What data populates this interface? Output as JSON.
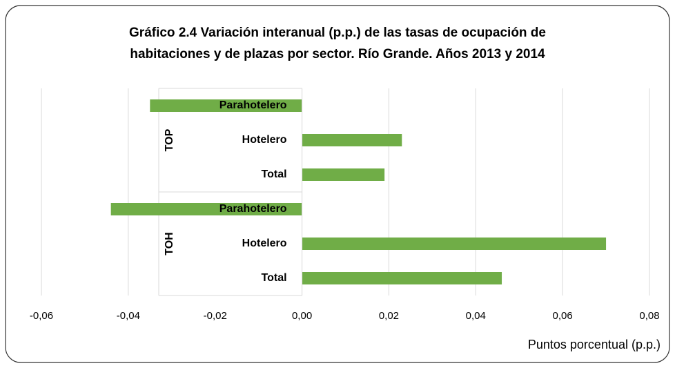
{
  "chart_data": {
    "type": "bar",
    "orientation": "horizontal",
    "title": [
      "Gráfico 2.4 Variación interanual (p.p.) de las tasas de ocupación de",
      "habitaciones y de plazas  por sector. Río Grande. Años 2013 y 2014"
    ],
    "x_label": "Puntos porcentual (p.p.)",
    "color": "#70ad47",
    "groups": [
      {
        "name": "TOP",
        "categories": [
          "Parahotelero",
          "Hotelero",
          "Total"
        ],
        "values": [
          -0.035,
          0.023,
          0.019
        ]
      },
      {
        "name": "TOH",
        "categories": [
          "Parahotelero",
          "Hotelero",
          "Total"
        ],
        "values": [
          -0.044,
          0.07,
          0.046
        ]
      }
    ],
    "xlim": [
      -0.06,
      0.08
    ],
    "xticks": [
      {
        "value": -0.06,
        "label": "-0,06"
      },
      {
        "value": -0.04,
        "label": "-0,04"
      },
      {
        "value": -0.02,
        "label": "-0,02"
      },
      {
        "value": 0,
        "label": "0,00"
      },
      {
        "value": 0.02,
        "label": "0,02"
      },
      {
        "value": 0.04,
        "label": "0,04"
      },
      {
        "value": 0.06,
        "label": "0,06"
      },
      {
        "value": 0.08,
        "label": "0,08"
      }
    ],
    "grid": true
  }
}
